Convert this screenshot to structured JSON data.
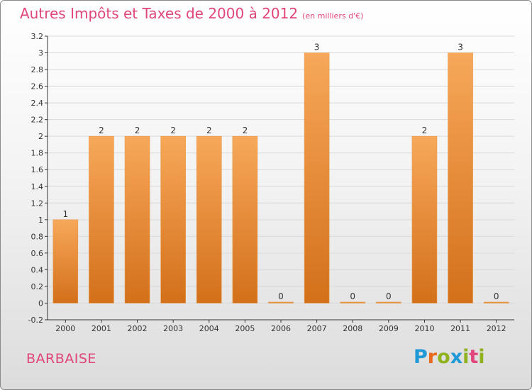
{
  "title": "Autres Impôts et Taxes de 2000 à 2012",
  "subtitle": "(en milliers d'€)",
  "location": "BARBAISE",
  "logo": {
    "text": "Proxiti",
    "letters": [
      {
        "ch": "P",
        "color": "#1f9ad6"
      },
      {
        "ch": "r",
        "color": "#e9691c"
      },
      {
        "ch": "o",
        "color": "#8fb21e"
      },
      {
        "ch": "x",
        "color": "#1f9ad6"
      },
      {
        "ch": "i",
        "color": "#8fb21e"
      },
      {
        "ch": "t",
        "color": "#e0457b"
      },
      {
        "ch": "i",
        "color": "#8fb21e"
      }
    ]
  },
  "colors": {
    "title": "#e0457b",
    "bar_top": "#f7a85a",
    "bar_bottom": "#d3701a",
    "grid": "#d9d9d9"
  },
  "chart_data": {
    "type": "bar",
    "categories": [
      "2000",
      "2001",
      "2002",
      "2003",
      "2004",
      "2005",
      "2006",
      "2007",
      "2008",
      "2009",
      "2010",
      "2011",
      "2012"
    ],
    "values": [
      1,
      2,
      2,
      2,
      2,
      2,
      0,
      3,
      0,
      0,
      2,
      3,
      0
    ],
    "labels": [
      "1",
      "2",
      "2",
      "2",
      "2",
      "2",
      "0",
      "3",
      "0",
      "0",
      "2",
      "3",
      "0"
    ],
    "ylim": [
      -0.2,
      3.2
    ],
    "yticks": [
      -0.2,
      0,
      0.2,
      0.4,
      0.6,
      0.8,
      1,
      1.2,
      1.4,
      1.6,
      1.8,
      2,
      2.2,
      2.4,
      2.6,
      2.8,
      3,
      3.2
    ],
    "ytick_labels": [
      "-0.2",
      "0",
      "0.2",
      "0.4",
      "0.6",
      "0.8",
      "1",
      "1.2",
      "1.4",
      "1.6",
      "1.8",
      "2",
      "2.2",
      "2.4",
      "2.6",
      "2.8",
      "3",
      "3.2"
    ],
    "grid": true
  }
}
